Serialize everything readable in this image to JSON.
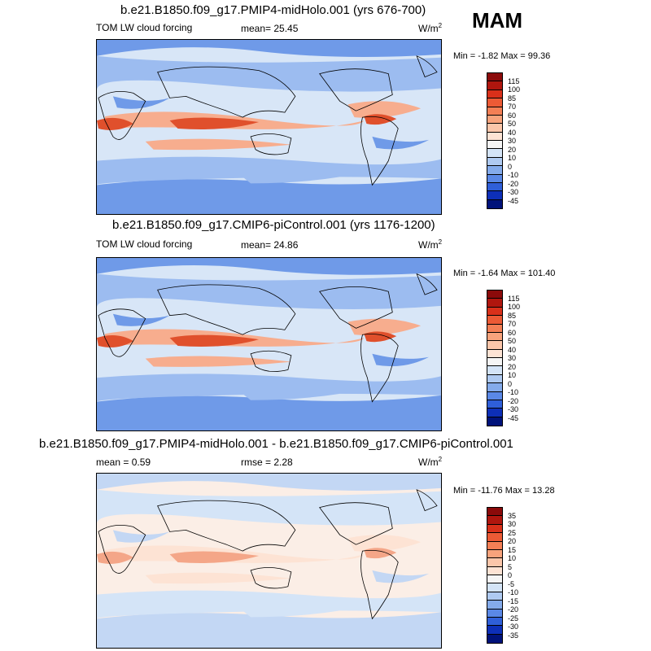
{
  "season": "MAM",
  "panels": [
    {
      "title": "b.e21.B1850.f09_g17.PMIP4-midHolo.001 (yrs 676-700)",
      "left_label": "TOM LW cloud forcing",
      "center_label": "mean=  25.45",
      "unit": "W/m",
      "unit_exp": "2",
      "min_label": "Min =",
      "min_value": "-1.82",
      "max_label": "Max =",
      "max_value": "99.36",
      "levels": [
        "115",
        "100",
        "85",
        "70",
        "60",
        "50",
        "40",
        "30",
        "20",
        "10",
        "0",
        "-10",
        "-20",
        "-30",
        "-45"
      ],
      "colors": [
        "#8b0a0a",
        "#b0160e",
        "#d9301a",
        "#ec5a35",
        "#f47f55",
        "#f8a37c",
        "#fbc6aa",
        "#fde3d4",
        "#f5f5f5",
        "#d4e4f7",
        "#afcaf1",
        "#84abeb",
        "#5a88e6",
        "#2f5fd9",
        "#0d2fb8",
        "#00127a"
      ],
      "field_colors": {
        "warm_max": "#e0502c",
        "warm": "#f7ad8e",
        "neutral": "#d8e6f7",
        "cool": "#9cbcf0",
        "cold": "#6f9ae8"
      }
    },
    {
      "title": "b.e21.B1850.f09_g17.CMIP6-piControl.001 (yrs 1176-1200)",
      "left_label": "TOM LW cloud forcing",
      "center_label": "mean=  24.86",
      "unit": "W/m",
      "unit_exp": "2",
      "min_label": "Min =",
      "min_value": "-1.64",
      "max_label": "Max =",
      "max_value": "101.40",
      "levels": [
        "115",
        "100",
        "85",
        "70",
        "60",
        "50",
        "40",
        "30",
        "20",
        "10",
        "0",
        "-10",
        "-20",
        "-30",
        "-45"
      ],
      "colors": [
        "#8b0a0a",
        "#b0160e",
        "#d9301a",
        "#ec5a35",
        "#f47f55",
        "#f8a37c",
        "#fbc6aa",
        "#fde3d4",
        "#f5f5f5",
        "#d4e4f7",
        "#afcaf1",
        "#84abeb",
        "#5a88e6",
        "#2f5fd9",
        "#0d2fb8",
        "#00127a"
      ],
      "field_colors": {
        "warm_max": "#e0502c",
        "warm": "#f7ad8e",
        "neutral": "#d8e6f7",
        "cool": "#9cbcf0",
        "cold": "#6f9ae8"
      }
    },
    {
      "title": "b.e21.B1850.f09_g17.PMIP4-midHolo.001 - b.e21.B1850.f09_g17.CMIP6-piControl.001",
      "left_label": "mean =   0.59",
      "center_label": "rmse =   2.28",
      "unit": "W/m",
      "unit_exp": "2",
      "min_label": "Min =",
      "min_value": "-11.76",
      "max_label": "Max =",
      "max_value": "13.28",
      "levels": [
        "35",
        "30",
        "25",
        "20",
        "15",
        "10",
        "5",
        "0",
        "-5",
        "-10",
        "-15",
        "-20",
        "-25",
        "-30",
        "-35"
      ],
      "colors": [
        "#8b0a0a",
        "#b0160e",
        "#d9301a",
        "#ec5a35",
        "#f47f55",
        "#f8a37c",
        "#fbc6aa",
        "#fde3d4",
        "#f5f5f5",
        "#d4e4f7",
        "#afcaf1",
        "#84abeb",
        "#5a88e6",
        "#2f5fd9",
        "#0d2fb8",
        "#00127a"
      ],
      "field_colors": {
        "warm_max": "#f4a688",
        "warm": "#fde3d4",
        "neutral": "#fbeee6",
        "cool": "#d4e4f7",
        "cold": "#c3d7f4"
      }
    }
  ]
}
